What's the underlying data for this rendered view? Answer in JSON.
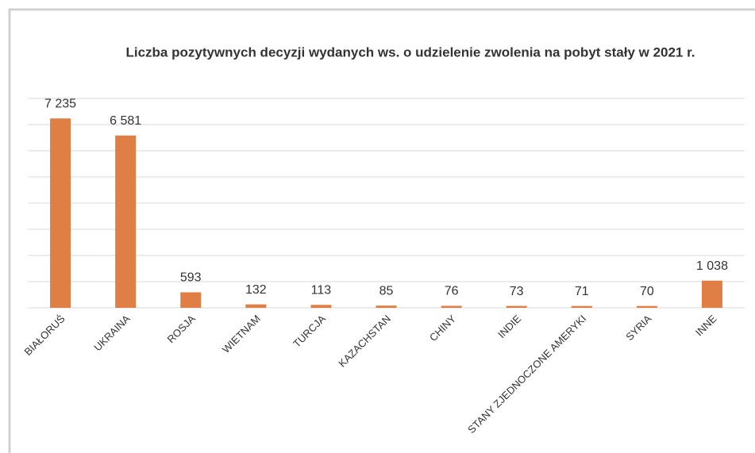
{
  "chart_data": {
    "type": "bar",
    "title": "Liczba pozytywnych decyzji wydanych ws. o udzielenie zwolenia na pobyt stały w 2021 r.",
    "categories": [
      "BIAŁORUŚ",
      "UKRAINA",
      "ROSJA",
      "WIETNAM",
      "TURCJA",
      "KAZACHSTAN",
      "CHINY",
      "INDIE",
      "STANY ZJEDNOCZONE AMERYKI",
      "SYRIA",
      "INNE"
    ],
    "values": [
      7235,
      6581,
      593,
      132,
      113,
      85,
      76,
      73,
      71,
      70,
      1038
    ],
    "value_labels": [
      "7 235",
      "6 581",
      "593",
      "132",
      "113",
      "85",
      "76",
      "73",
      "71",
      "70",
      "1 038"
    ],
    "color": "#e07f45",
    "ylim": [
      0,
      8000
    ],
    "yticks": [
      0,
      1000,
      2000,
      3000,
      4000,
      5000,
      6000,
      7000,
      8000
    ],
    "grid": true
  }
}
